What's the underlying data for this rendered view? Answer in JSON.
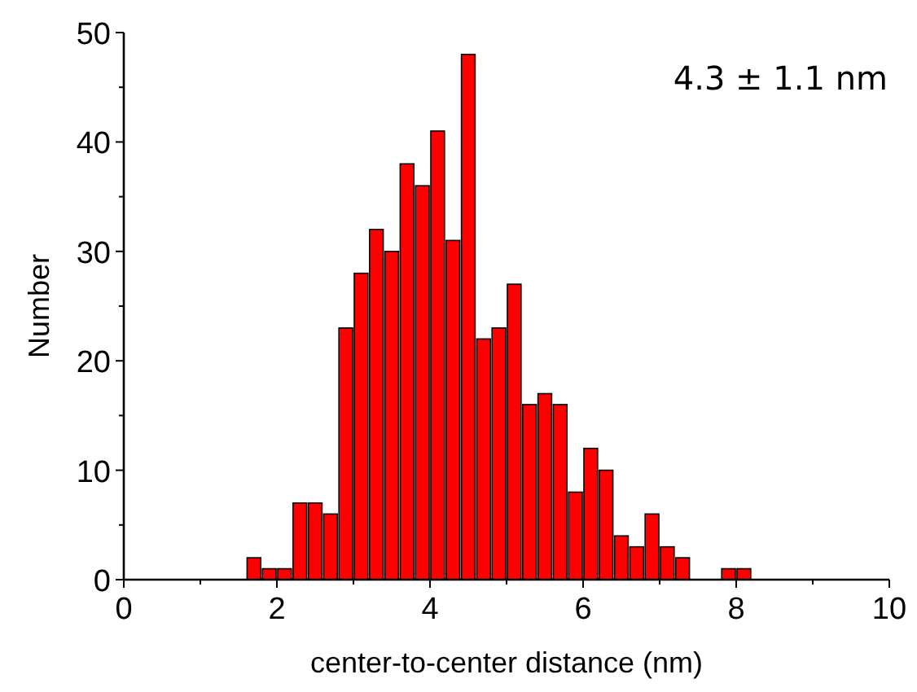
{
  "chart_data": {
    "type": "histogram",
    "xlabel": "center-to-center distance (nm)",
    "ylabel": "Number",
    "annotations": [
      "4.3 ± 1.1 nm"
    ],
    "bins": [
      1.6,
      1.8,
      2.0,
      2.2,
      2.4,
      2.6,
      2.8,
      3.0,
      3.2,
      3.4,
      3.6,
      3.8,
      4.0,
      4.2,
      4.4,
      4.6,
      4.8,
      5.0,
      5.2,
      5.4,
      5.6,
      5.8,
      6.0,
      6.2,
      6.4,
      6.6,
      6.8,
      7.0,
      7.2,
      7.4,
      7.6,
      7.8,
      8.0,
      8.2
    ],
    "values": [
      2,
      1,
      1,
      7,
      7,
      6,
      23,
      28,
      32,
      30,
      38,
      36,
      41,
      31,
      48,
      22,
      23,
      27,
      16,
      17,
      16,
      8,
      12,
      10,
      4,
      3,
      6,
      3,
      2,
      0,
      0,
      1,
      1
    ],
    "color": "#ff0000",
    "xlim": [
      0,
      10
    ],
    "ylim": [
      0,
      50
    ],
    "xticks": [
      0,
      {
        "value": 1,
        "label": null
      },
      2,
      {
        "value": 3,
        "label": null
      },
      4,
      {
        "value": 5,
        "label": null
      },
      6,
      {
        "value": 7,
        "label": null
      },
      8,
      {
        "value": 9,
        "label": null
      },
      10
    ],
    "yticks": [
      0,
      {
        "value": 5,
        "label": null
      },
      10,
      {
        "value": 15,
        "label": null
      },
      20,
      {
        "value": 25,
        "label": null
      },
      30,
      {
        "value": 35,
        "label": null
      },
      40,
      {
        "value": 45,
        "label": null
      },
      50
    ],
    "grid": false
  }
}
